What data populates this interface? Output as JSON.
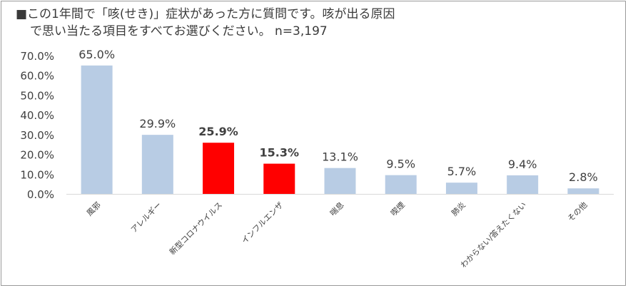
{
  "title_line1": "■この1年間で「咳(せき)」症状があった方に質問です。咳が出る原因",
  "title_line2": "で思い当たる項目をすべてお選びください。 n=3,197",
  "colors": {
    "normal": "#b8cce4",
    "highlight": "#ff0000"
  },
  "chart_data": {
    "type": "bar",
    "title": "",
    "xlabel": "",
    "ylabel": "",
    "ylim": [
      0,
      70
    ],
    "yticks": [
      "0.0%",
      "10.0%",
      "20.0%",
      "30.0%",
      "40.0%",
      "50.0%",
      "60.0%",
      "70.0%"
    ],
    "grid": false,
    "categories": [
      "風邪",
      "アレルギー",
      "新型コロナウイルス",
      "インフルエンザ",
      "喘息",
      "喫煙",
      "肺炎",
      "わからない/答えたくない",
      "その他"
    ],
    "values": [
      65.0,
      29.9,
      25.9,
      15.3,
      13.1,
      9.5,
      5.7,
      9.4,
      2.8
    ],
    "value_labels": [
      "65.0%",
      "29.9%",
      "25.9%",
      "15.3%",
      "13.1%",
      "9.5%",
      "5.7%",
      "9.4%",
      "2.8%"
    ],
    "highlighted": [
      "新型コロナウイルス",
      "インフルエンザ"
    ]
  }
}
